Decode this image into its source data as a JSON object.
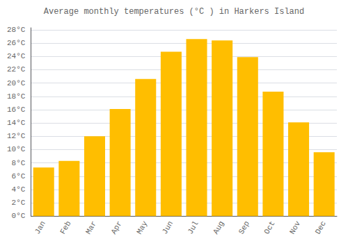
{
  "chart_data": {
    "type": "bar",
    "title": "Average monthly temperatures (°C ) in Harkers Island",
    "categories": [
      "Jan",
      "Feb",
      "Mar",
      "Apr",
      "May",
      "Jun",
      "Jul",
      "Aug",
      "Sep",
      "Oct",
      "Nov",
      "Dec"
    ],
    "values": [
      7.3,
      8.3,
      12.0,
      16.1,
      20.6,
      24.7,
      26.6,
      26.4,
      23.9,
      18.7,
      14.1,
      9.6
    ],
    "color": "#FFBE00",
    "ylim": [
      0,
      28.3
    ],
    "yticks": [
      {
        "value": 0,
        "label": "0°C"
      },
      {
        "value": 2,
        "label": "2°C"
      },
      {
        "value": 4,
        "label": "4°C"
      },
      {
        "value": 6,
        "label": "6°C"
      },
      {
        "value": 8,
        "label": "8°C"
      },
      {
        "value": 10,
        "label": "10°C"
      },
      {
        "value": 12,
        "label": "12°C"
      },
      {
        "value": 14,
        "label": "14°C"
      },
      {
        "value": 16,
        "label": "16°C"
      },
      {
        "value": 18,
        "label": "18°C"
      },
      {
        "value": 20,
        "label": "20°C"
      },
      {
        "value": 22,
        "label": "22°C"
      },
      {
        "value": 24,
        "label": "24°C"
      },
      {
        "value": 26,
        "label": "26°C"
      },
      {
        "value": 28,
        "label": "28°C"
      }
    ],
    "grid": true
  }
}
